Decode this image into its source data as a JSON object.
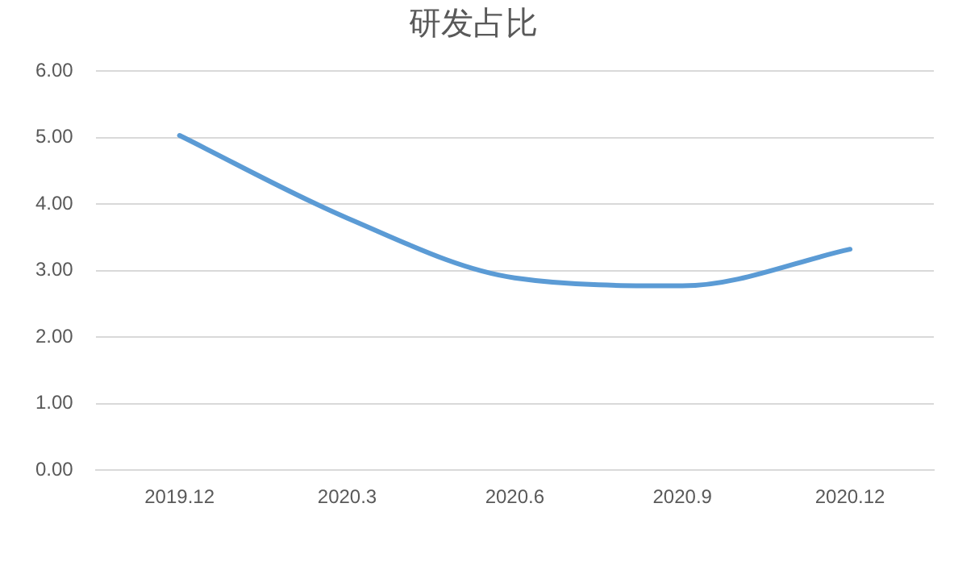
{
  "chart_data": {
    "type": "line",
    "title": "研发占比",
    "categories": [
      "2019.12",
      "2020.3",
      "2020.6",
      "2020.9",
      "2020.12"
    ],
    "series": [
      {
        "color": "#5b9bd5",
        "values": [
          5.03,
          3.79,
          2.89,
          2.77,
          3.32
        ]
      }
    ],
    "ylim": [
      0,
      6
    ],
    "yticks": [
      {
        "value": 0,
        "label": "0.00"
      },
      {
        "value": 1,
        "label": "1.00"
      },
      {
        "value": 2,
        "label": "2.00"
      },
      {
        "value": 3,
        "label": "3.00"
      },
      {
        "value": 4,
        "label": "4.00"
      },
      {
        "value": 5,
        "label": "5.00"
      },
      {
        "value": 6,
        "label": "6.00"
      }
    ],
    "grid": "y",
    "legend": false,
    "marker": "none",
    "line_style": "solid"
  }
}
